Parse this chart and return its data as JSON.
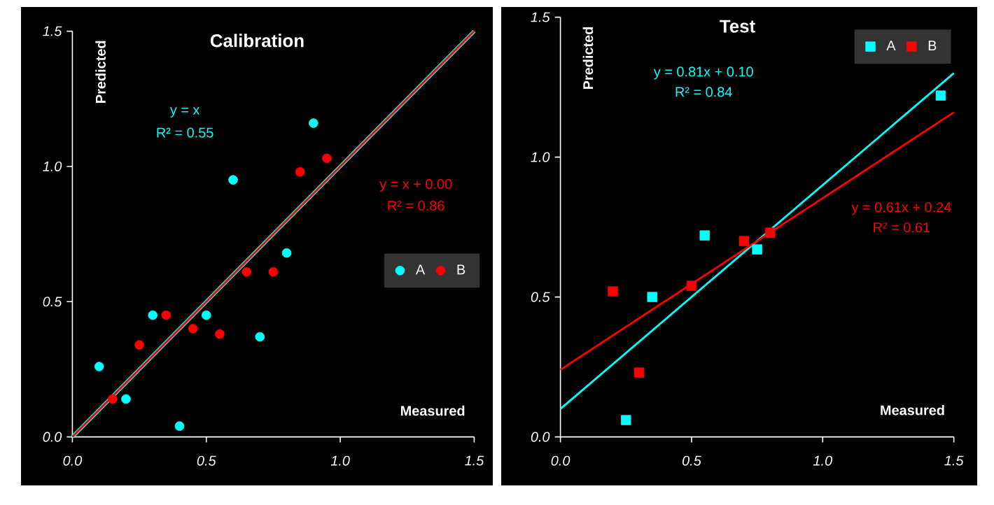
{
  "chart_data": [
    {
      "type": "scatter",
      "title": "Calibration",
      "xlabel": "Measured",
      "ylabel": "Predicted",
      "marker": "circle",
      "legend": "right",
      "xlim": [
        0,
        1.5
      ],
      "ylim": [
        0,
        1.5
      ],
      "xticks": [
        {
          "value": 0,
          "label": "0.0"
        },
        {
          "value": 0.5,
          "label": "0.5"
        },
        {
          "value": 1,
          "label": "1.0"
        },
        {
          "value": 1.5,
          "label": "1.5"
        }
      ],
      "yticks": [
        {
          "value": 0,
          "label": "0.0"
        },
        {
          "value": 0.5,
          "label": "0.5"
        },
        {
          "value": 1,
          "label": "1.0"
        },
        {
          "value": 1.5,
          "label": "1.5"
        }
      ],
      "annotations": [
        "y = x",
        "R² = 0.55",
        "y = x + 0.00",
        "R² = 0.86"
      ],
      "series": [
        {
          "name": "A",
          "color": "#00ffff",
          "x": [
            0.1,
            0.2,
            0.3,
            0.4,
            0.5,
            0.6,
            0.7,
            0.8,
            0.9
          ],
          "values": [
            0.26,
            0.14,
            0.45,
            0.04,
            0.45,
            0.95,
            0.37,
            0.68,
            1.16
          ]
        },
        {
          "name": "B",
          "color": "#ff0000",
          "x": [
            0.15,
            0.25,
            0.35,
            0.45,
            0.55,
            0.65,
            0.75,
            0.85,
            0.95
          ],
          "values": [
            0.14,
            0.34,
            0.45,
            0.4,
            0.38,
            0.61,
            0.61,
            0.98,
            1.03
          ]
        },
        {
          "type": "line",
          "marker": "none",
          "color": "#00ffff",
          "x": [
            0,
            1.5
          ],
          "values": [
            0,
            1.5
          ]
        },
        {
          "type": "line",
          "marker": "none",
          "color": "#ff0000",
          "x": [
            0,
            1.5
          ],
          "values": [
            0,
            1.5
          ]
        }
      ]
    },
    {
      "type": "scatter",
      "title": "Test",
      "xlabel": "Measured",
      "ylabel": "Predicted",
      "marker": "square",
      "legend": "top right",
      "xlim": [
        0,
        1.5
      ],
      "ylim": [
        0,
        1.5
      ],
      "xticks": [
        {
          "value": 0,
          "label": "0.0"
        },
        {
          "value": 0.5,
          "label": "0.5"
        },
        {
          "value": 1,
          "label": "1.0"
        },
        {
          "value": 1.5,
          "label": "1.5"
        }
      ],
      "yticks": [
        {
          "value": 0,
          "label": "0.0"
        },
        {
          "value": 0.5,
          "label": "0.5"
        },
        {
          "value": 1,
          "label": "1.0"
        },
        {
          "value": 1.5,
          "label": "1.5"
        }
      ],
      "annotations": [
        "y = 0.81x + 0.10",
        "R² = 0.84",
        "y = 0.61x + 0.24",
        "R² = 0.61"
      ],
      "series": [
        {
          "name": "A",
          "color": "#00ffff",
          "x": [
            0.25,
            0.35,
            0.55,
            0.75,
            1.45
          ],
          "values": [
            0.06,
            0.5,
            0.72,
            0.67,
            1.22
          ]
        },
        {
          "name": "B",
          "color": "#ff0000",
          "x": [
            0.2,
            0.3,
            0.5,
            0.7,
            0.8
          ],
          "values": [
            0.52,
            0.23,
            0.54,
            0.7,
            0.73
          ]
        },
        {
          "type": "line",
          "marker": "none",
          "color": "#00ffff",
          "x": [
            0,
            1.5
          ],
          "values": [
            0.1,
            1.3
          ]
        },
        {
          "type": "line",
          "marker": "none",
          "color": "#ff0000",
          "x": [
            0,
            1.5
          ],
          "values": [
            0.24,
            1.16
          ]
        }
      ]
    }
  ]
}
